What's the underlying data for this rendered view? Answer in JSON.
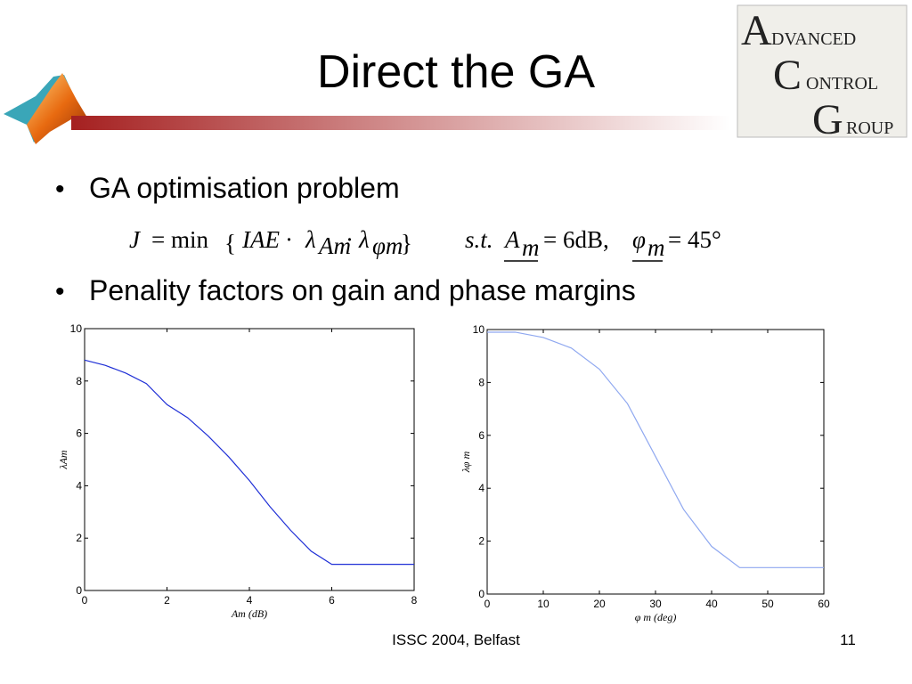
{
  "title": "Direct the GA",
  "bullets": [
    "GA optimisation problem",
    "Penality factors on gain and phase margins"
  ],
  "formula": [
    "J",
    "= min",
    "{",
    "IAE ·",
    "λ",
    "Am",
    "·",
    "λ",
    "φm",
    "}",
    "s.t.",
    "A",
    "m",
    "= 6dB,",
    "φ",
    "m",
    "= 45°"
  ],
  "logo": [
    "A",
    "DVANCED",
    "C",
    "ONTROL",
    "G",
    "ROUP"
  ],
  "footer": {
    "text": "ISSC 2004, Belfast",
    "page": "11"
  },
  "chart_data": [
    {
      "type": "line",
      "x_label": "Am (dB)",
      "y_label": "λAm",
      "color": "#1f2fd6",
      "x": [
        0,
        0.5,
        1,
        1.5,
        2,
        2.5,
        3,
        3.5,
        4,
        4.5,
        5,
        5.5,
        6,
        6.5,
        7,
        7.5,
        8
      ],
      "values": [
        8.8,
        8.6,
        8.3,
        7.9,
        7.1,
        6.6,
        5.9,
        5.1,
        4.2,
        3.2,
        2.3,
        1.5,
        1.0,
        1,
        1,
        1,
        1
      ],
      "xlim": [
        0,
        8
      ],
      "ylim": [
        0,
        10
      ],
      "xticks": [
        0,
        2,
        4,
        6,
        8
      ],
      "yticks": [
        0,
        2,
        4,
        6,
        8,
        10
      ]
    },
    {
      "type": "line",
      "x_label": "φ m (deg)",
      "y_label": "λφ m",
      "color": "#8fa8f0",
      "x": [
        0,
        5,
        10,
        15,
        20,
        25,
        30,
        35,
        40,
        45,
        50,
        55,
        60
      ],
      "values": [
        9.9,
        9.9,
        9.7,
        9.3,
        8.5,
        7.2,
        5.2,
        3.2,
        1.8,
        1.0,
        1,
        1,
        1
      ],
      "xlim": [
        0,
        60
      ],
      "ylim": [
        0,
        10
      ],
      "xticks": [
        0,
        10,
        20,
        30,
        40,
        50,
        60
      ],
      "yticks": [
        0,
        2,
        4,
        6,
        8,
        10
      ]
    }
  ]
}
